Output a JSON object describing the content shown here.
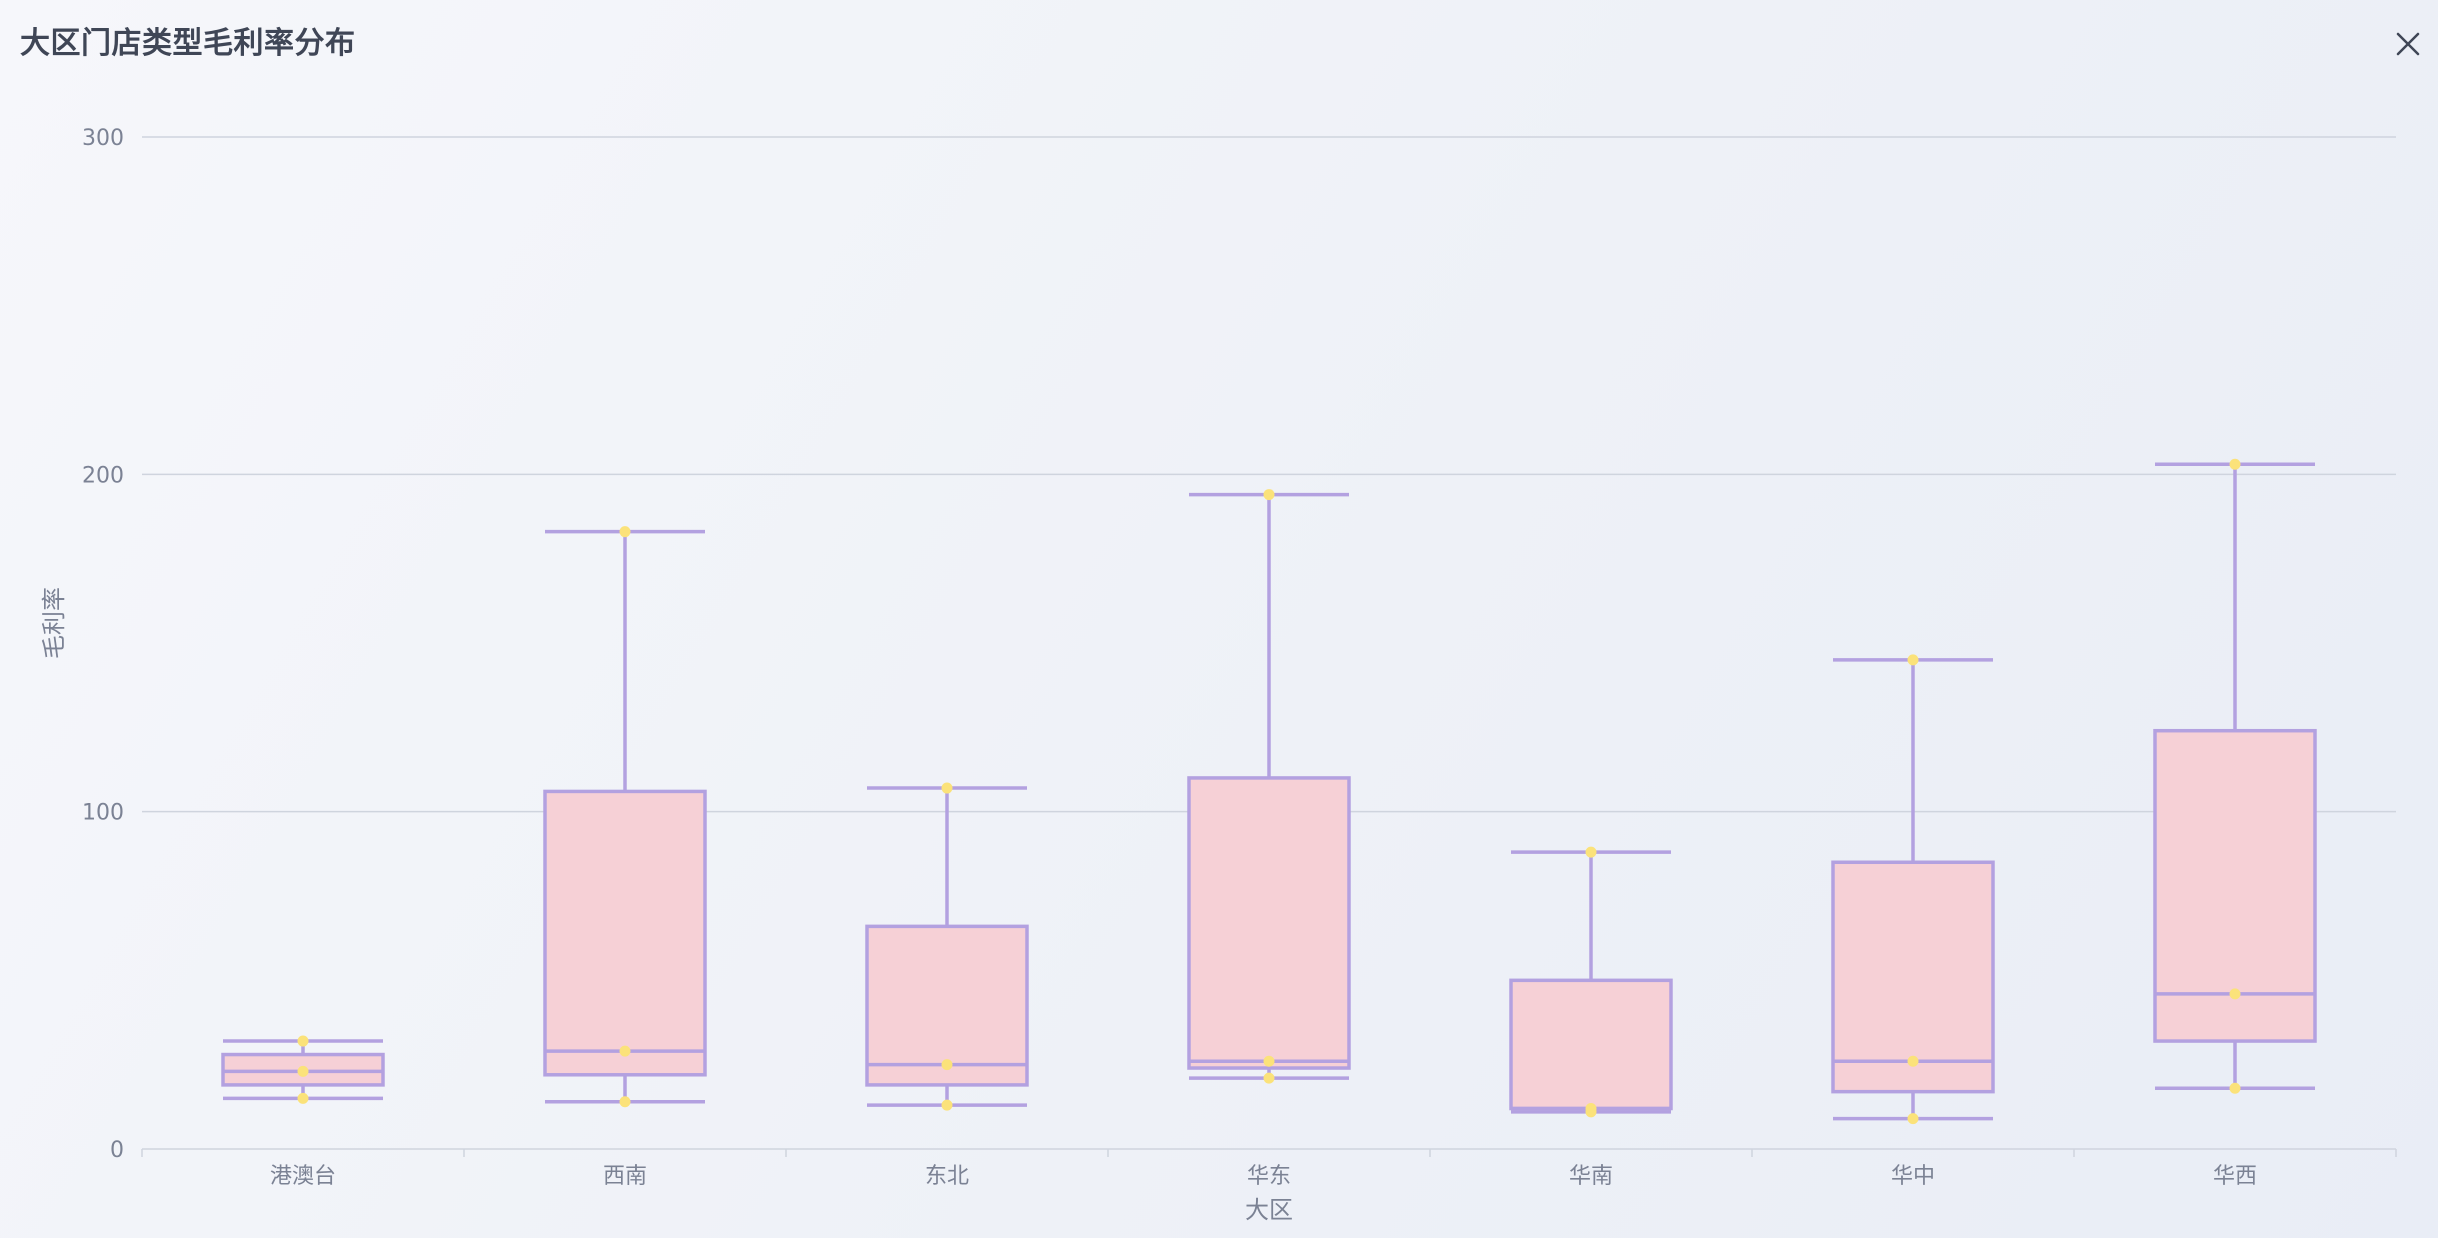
{
  "dialog": {
    "title": "大区门店类型毛利率分布",
    "close_icon": "close-icon"
  },
  "colors": {
    "box_fill": "#f6d0d6",
    "box_stroke": "#b3a1e0",
    "point": "#fbe27a",
    "grid": "#cfd4de",
    "axis_text": "#7b8294"
  },
  "chart_data": {
    "type": "boxplot",
    "xlabel": "大区",
    "ylabel": "毛利率",
    "ylim": [
      0,
      300
    ],
    "yticks": [
      0,
      100,
      200,
      300
    ],
    "grid": true,
    "categories": [
      "港澳台",
      "西南",
      "东北",
      "华东",
      "华南",
      "华中",
      "华西"
    ],
    "boxes": [
      {
        "min": 15,
        "q1": 19,
        "median": 23,
        "q3": 28,
        "max": 32
      },
      {
        "min": 14,
        "q1": 22,
        "median": 29,
        "q3": 106,
        "max": 183
      },
      {
        "min": 13,
        "q1": 19,
        "median": 25,
        "q3": 66,
        "max": 107
      },
      {
        "min": 21,
        "q1": 24,
        "median": 26,
        "q3": 110,
        "max": 194
      },
      {
        "min": 11,
        "q1": 12,
        "median": 12,
        "q3": 50,
        "max": 88
      },
      {
        "min": 9,
        "q1": 17,
        "median": 26,
        "q3": 85,
        "max": 145
      },
      {
        "min": 18,
        "q1": 32,
        "median": 46,
        "q3": 124,
        "max": 203
      }
    ]
  }
}
